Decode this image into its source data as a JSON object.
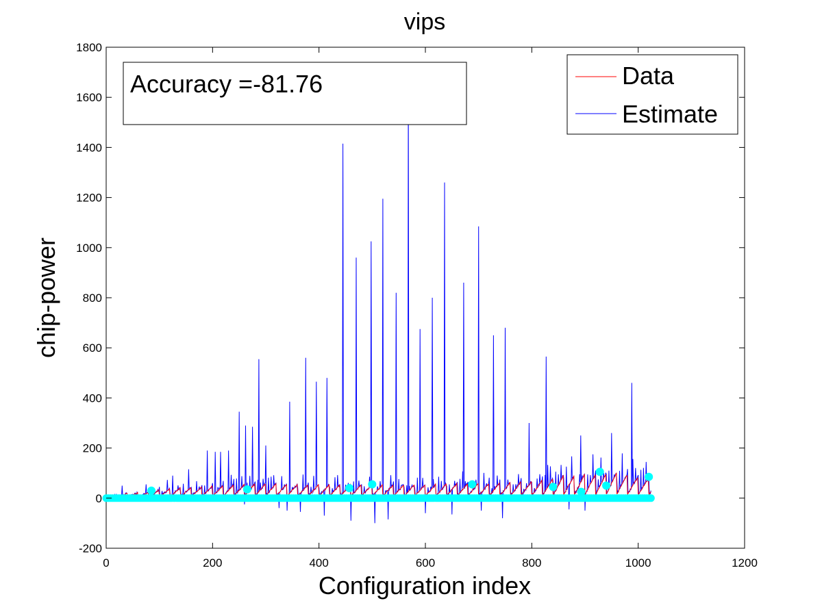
{
  "chart_data": {
    "type": "line",
    "title": "vips",
    "xlabel": "Configuration index",
    "ylabel": "chip-power",
    "xlim": [
      0,
      1200
    ],
    "ylim": [
      -200,
      1800
    ],
    "x_ticks": [
      "0",
      "200",
      "400",
      "600",
      "800",
      "1000",
      "1200"
    ],
    "y_ticks": [
      "-200",
      "0",
      "200",
      "400",
      "600",
      "800",
      "1000",
      "1200",
      "1400",
      "1600",
      "1800"
    ],
    "grid": false,
    "legend_position": "top-right",
    "annotation": "Accuracy =-81.76",
    "colors": {
      "data": "#ff0000",
      "estimate": "#0000ff",
      "markers": "#00ffff"
    },
    "series": [
      {
        "name": "Data",
        "color": "#ff0000",
        "points": [
          [
            0,
            5
          ],
          [
            40,
            20
          ],
          [
            80,
            25
          ],
          [
            100,
            35
          ],
          [
            120,
            40
          ],
          [
            160,
            45
          ],
          [
            200,
            50
          ],
          [
            240,
            55
          ],
          [
            280,
            60
          ],
          [
            320,
            60
          ],
          [
            360,
            55
          ],
          [
            400,
            55
          ],
          [
            440,
            55
          ],
          [
            480,
            55
          ],
          [
            520,
            55
          ],
          [
            560,
            55
          ],
          [
            600,
            55
          ],
          [
            640,
            60
          ],
          [
            680,
            60
          ],
          [
            720,
            60
          ],
          [
            760,
            65
          ],
          [
            800,
            70
          ],
          [
            840,
            80
          ],
          [
            860,
            95
          ],
          [
            880,
            90
          ],
          [
            900,
            100
          ],
          [
            920,
            95
          ],
          [
            940,
            100
          ],
          [
            960,
            105
          ],
          [
            980,
            95
          ],
          [
            1000,
            85
          ],
          [
            1024,
            80
          ]
        ]
      },
      {
        "name": "Estimate",
        "color": "#0000ff",
        "peaks": [
          [
            30,
            50
          ],
          [
            75,
            55
          ],
          [
            100,
            45
          ],
          [
            125,
            90
          ],
          [
            155,
            115
          ],
          [
            190,
            190
          ],
          [
            205,
            185
          ],
          [
            215,
            185
          ],
          [
            230,
            190
          ],
          [
            250,
            345
          ],
          [
            262,
            290
          ],
          [
            275,
            285
          ],
          [
            287,
            555
          ],
          [
            300,
            210
          ],
          [
            325,
            250
          ],
          [
            345,
            385
          ],
          [
            365,
            435
          ],
          [
            375,
            560
          ],
          [
            395,
            465
          ],
          [
            415,
            480
          ],
          [
            445,
            1415
          ],
          [
            470,
            960
          ],
          [
            498,
            1025
          ],
          [
            520,
            1195
          ],
          [
            545,
            820
          ],
          [
            568,
            1680
          ],
          [
            590,
            675
          ],
          [
            613,
            800
          ],
          [
            636,
            1260
          ],
          [
            650,
            905
          ],
          [
            672,
            860
          ],
          [
            700,
            1085
          ],
          [
            728,
            650
          ],
          [
            750,
            680
          ],
          [
            795,
            300
          ],
          [
            827,
            565
          ],
          [
            850,
            95
          ],
          [
            892,
            250
          ],
          [
            950,
            260
          ],
          [
            988,
            460
          ],
          [
            1020,
            80
          ]
        ],
        "dips": [
          [
            260,
            -25
          ],
          [
            325,
            -40
          ],
          [
            340,
            -50
          ],
          [
            365,
            -55
          ],
          [
            410,
            -70
          ],
          [
            460,
            -90
          ],
          [
            505,
            -100
          ],
          [
            530,
            -85
          ],
          [
            600,
            -60
          ],
          [
            650,
            -65
          ],
          [
            705,
            -50
          ],
          [
            745,
            -80
          ],
          [
            870,
            -45
          ],
          [
            900,
            -50
          ]
        ]
      }
    ],
    "markers": {
      "color": "#00ffff",
      "baseline_y": 0,
      "points": [
        [
          85,
          30
        ],
        [
          265,
          35
        ],
        [
          457,
          40
        ],
        [
          500,
          55
        ],
        [
          688,
          55
        ],
        [
          840,
          45
        ],
        [
          893,
          25
        ],
        [
          928,
          105
        ],
        [
          940,
          50
        ],
        [
          1020,
          85
        ]
      ]
    }
  }
}
